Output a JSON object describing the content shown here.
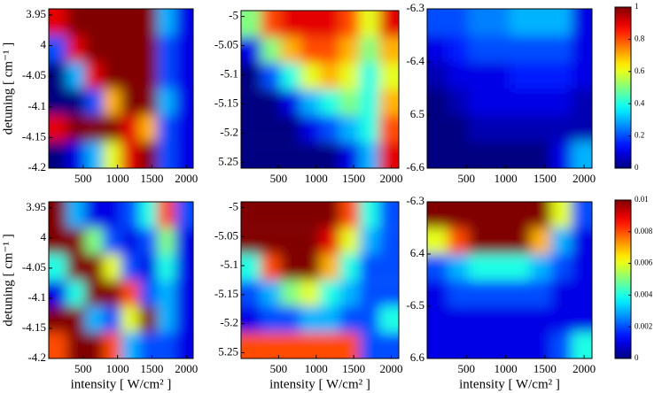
{
  "chart_data": [
    {
      "type": "heatmap",
      "y_label": "detuning [ cm⁻¹ ]",
      "x": [
        131,
        394,
        656,
        919,
        1181,
        1444,
        1706,
        1969
      ],
      "y": [
        -3.962,
        -4.005,
        -4.048,
        -4.092,
        -4.135,
        -4.178
      ],
      "z": [
        [
          0.9,
          1,
          1,
          1,
          1,
          1,
          0.3,
          0.1
        ],
        [
          0.2,
          0.9,
          1,
          1,
          1,
          1,
          0.2,
          0.1
        ],
        [
          0,
          0.3,
          0.9,
          1,
          1,
          1,
          0.2,
          0.1
        ],
        [
          0,
          0,
          0.2,
          0.7,
          1,
          1,
          0.3,
          0.1
        ],
        [
          0.9,
          1,
          1,
          1,
          0.9,
          0.7,
          0.2,
          0.1
        ],
        [
          0,
          0.1,
          0.3,
          0.6,
          0.9,
          1,
          0.2,
          0.1
        ]
      ],
      "clim": [
        0,
        1
      ],
      "xlim": [
        0,
        2100
      ],
      "ylim": [
        -4.2,
        -3.94
      ],
      "xticks": [
        500,
        1000,
        1500,
        2000
      ],
      "yticks": [
        {
          "value": -3.95,
          "label": "3.95"
        },
        {
          "value": -4,
          "label": "4"
        },
        -4.05,
        -4.1,
        -4.15,
        -4.2
      ]
    },
    {
      "type": "heatmap",
      "x": [
        131,
        394,
        656,
        919,
        1181,
        1444,
        1706,
        1969
      ],
      "y": [
        -5.012,
        -5.058,
        -5.102,
        -5.148,
        -5.192,
        -5.238
      ],
      "z": [
        [
          0.5,
          0.8,
          0.9,
          0.9,
          0.9,
          0.8,
          0.6,
          0.9
        ],
        [
          0.1,
          0.5,
          0.7,
          0.8,
          0.8,
          0.7,
          0.5,
          0.7
        ],
        [
          0,
          0.2,
          0.4,
          0.6,
          0.7,
          0.6,
          0.4,
          0.6
        ],
        [
          0,
          0,
          0.1,
          0.3,
          0.4,
          0.5,
          0.4,
          0.7
        ],
        [
          0,
          0,
          0,
          0.1,
          0.2,
          0.3,
          0.4,
          0.8
        ],
        [
          0,
          0,
          0,
          0,
          0,
          0.1,
          0.3,
          0.9
        ]
      ],
      "clim": [
        0,
        1
      ],
      "xlim": [
        0,
        2100
      ],
      "ylim": [
        -5.26,
        -4.99
      ],
      "xticks": [
        500,
        1000,
        1500,
        2000
      ],
      "yticks": [
        -5,
        -5.05,
        -5.1,
        -5.15,
        -5.2,
        {
          "value": -5.25,
          "label": "5.25"
        }
      ]
    },
    {
      "type": "heatmap",
      "x": [
        131,
        394,
        656,
        919,
        1181,
        1444,
        1706,
        1969
      ],
      "y": [
        -6.325,
        -6.375,
        -6.425,
        -6.475,
        -6.525,
        -6.575
      ],
      "z": [
        [
          0.2,
          0.2,
          0.25,
          0.25,
          0.3,
          0.3,
          0.3,
          0.1
        ],
        [
          0.1,
          0.15,
          0.2,
          0.2,
          0.2,
          0.2,
          0.2,
          0.1
        ],
        [
          0.05,
          0.1,
          0.1,
          0.1,
          0.15,
          0.15,
          0.15,
          0.1
        ],
        [
          0,
          0.05,
          0.1,
          0.1,
          0.1,
          0.1,
          0.1,
          0.05
        ],
        [
          0,
          0,
          0.05,
          0.05,
          0.05,
          0.05,
          0.05,
          0.05
        ],
        [
          0,
          0,
          0,
          0,
          0,
          0,
          0.1,
          0.3
        ]
      ],
      "clim": [
        0,
        1
      ],
      "xlim": [
        0,
        2100
      ],
      "ylim": [
        -6.6,
        -6.3
      ],
      "xticks": [
        500,
        1000,
        1500,
        2000
      ],
      "yticks": [
        -6.3,
        -6.4,
        {
          "value": -6.5,
          "label": "6.5"
        },
        -6.6
      ],
      "colorbar_ticks": [
        0,
        0.2,
        0.4,
        0.6,
        0.8,
        1
      ]
    },
    {
      "type": "heatmap",
      "y_label": "detuning [ cm⁻¹ ]",
      "x_label": "intensity [ W/cm² ]",
      "x": [
        131,
        394,
        656,
        919,
        1181,
        1444,
        1706,
        1969
      ],
      "y": [
        -3.962,
        -4.005,
        -4.048,
        -4.092,
        -4.135,
        -4.178
      ],
      "z": [
        [
          0.01,
          0.003,
          0.001,
          0.001,
          0.002,
          0.004,
          0.008,
          0.002
        ],
        [
          0.01,
          0.01,
          0.005,
          0.002,
          0.001,
          0.002,
          0.005,
          0.001
        ],
        [
          0.004,
          0.01,
          0.01,
          0.006,
          0.002,
          0.001,
          0.004,
          0.001
        ],
        [
          0.001,
          0.004,
          0.01,
          0.01,
          0.008,
          0.002,
          0.003,
          0.001
        ],
        [
          0.01,
          0.01,
          0.003,
          0.002,
          0.006,
          0.01,
          0.003,
          0.001
        ],
        [
          0.008,
          0.01,
          0.01,
          0.008,
          0.003,
          0.002,
          0.002,
          0.001
        ]
      ],
      "clim": [
        0,
        0.01
      ],
      "xlim": [
        0,
        2100
      ],
      "ylim": [
        -4.2,
        -3.94
      ],
      "xticks": [
        500,
        1000,
        1500,
        2000
      ],
      "yticks": [
        {
          "value": -3.95,
          "label": "3.95"
        },
        {
          "value": -4,
          "label": "4"
        },
        -4.05,
        -4.1,
        -4.15,
        -4.2
      ]
    },
    {
      "type": "heatmap",
      "x_label": "intensity [ W/cm² ]",
      "x": [
        131,
        394,
        656,
        919,
        1181,
        1444,
        1706,
        1969
      ],
      "y": [
        -5.012,
        -5.058,
        -5.102,
        -5.148,
        -5.192,
        -5.238
      ],
      "z": [
        [
          0.01,
          0.01,
          0.01,
          0.01,
          0.01,
          0.008,
          0.004,
          0.002
        ],
        [
          0.01,
          0.01,
          0.01,
          0.01,
          0.009,
          0.006,
          0.003,
          0.002
        ],
        [
          0.004,
          0.008,
          0.01,
          0.01,
          0.007,
          0.004,
          0.002,
          0.002
        ],
        [
          0.002,
          0.003,
          0.005,
          0.006,
          0.004,
          0.003,
          0.002,
          0.002
        ],
        [
          0.001,
          0.002,
          0.002,
          0.003,
          0.003,
          0.002,
          0.002,
          0.004
        ],
        [
          0.008,
          0.008,
          0.008,
          0.008,
          0.008,
          0.008,
          0.002,
          0.002
        ]
      ],
      "clim": [
        0,
        0.01
      ],
      "xlim": [
        0,
        2100
      ],
      "ylim": [
        -5.26,
        -4.99
      ],
      "xticks": [
        500,
        1000,
        1500,
        2000
      ],
      "yticks": [
        -5,
        -5.05,
        -5.1,
        -5.15,
        -5.2,
        {
          "value": -5.25,
          "label": "5.25"
        }
      ]
    },
    {
      "type": "heatmap",
      "x_label": "intensity [ W/cm² ]",
      "x": [
        131,
        394,
        656,
        919,
        1181,
        1444,
        1706,
        1969
      ],
      "y": [
        -6.325,
        -6.375,
        -6.425,
        -6.475,
        -6.525,
        -6.575
      ],
      "z": [
        [
          0.01,
          0.01,
          0.01,
          0.01,
          0.01,
          0.01,
          0.006,
          0.002
        ],
        [
          0.006,
          0.008,
          0.01,
          0.01,
          0.01,
          0.007,
          0.003,
          0.001
        ],
        [
          0.002,
          0.003,
          0.004,
          0.004,
          0.004,
          0.003,
          0.002,
          0.001
        ],
        [
          0.001,
          0.002,
          0.002,
          0.002,
          0.002,
          0.002,
          0.001,
          0.001
        ],
        [
          0.001,
          0.001,
          0.001,
          0.001,
          0.001,
          0.001,
          0.001,
          0.001
        ],
        [
          0.001,
          0.001,
          0.001,
          0.001,
          0.001,
          0.001,
          0.002,
          0.004
        ]
      ],
      "clim": [
        0,
        0.01
      ],
      "xlim": [
        0,
        2100
      ],
      "ylim": [
        -6.6,
        -6.3
      ],
      "xticks": [
        500,
        1000,
        1500,
        2000
      ],
      "yticks": [
        -6.3,
        {
          "value": -6.4,
          "label": "6.4"
        },
        -6.5,
        {
          "value": -6.6,
          "label": "6.6"
        }
      ],
      "colorbar_ticks": [
        0,
        0.002,
        0.004,
        0.006,
        0.008,
        0.01
      ]
    }
  ]
}
